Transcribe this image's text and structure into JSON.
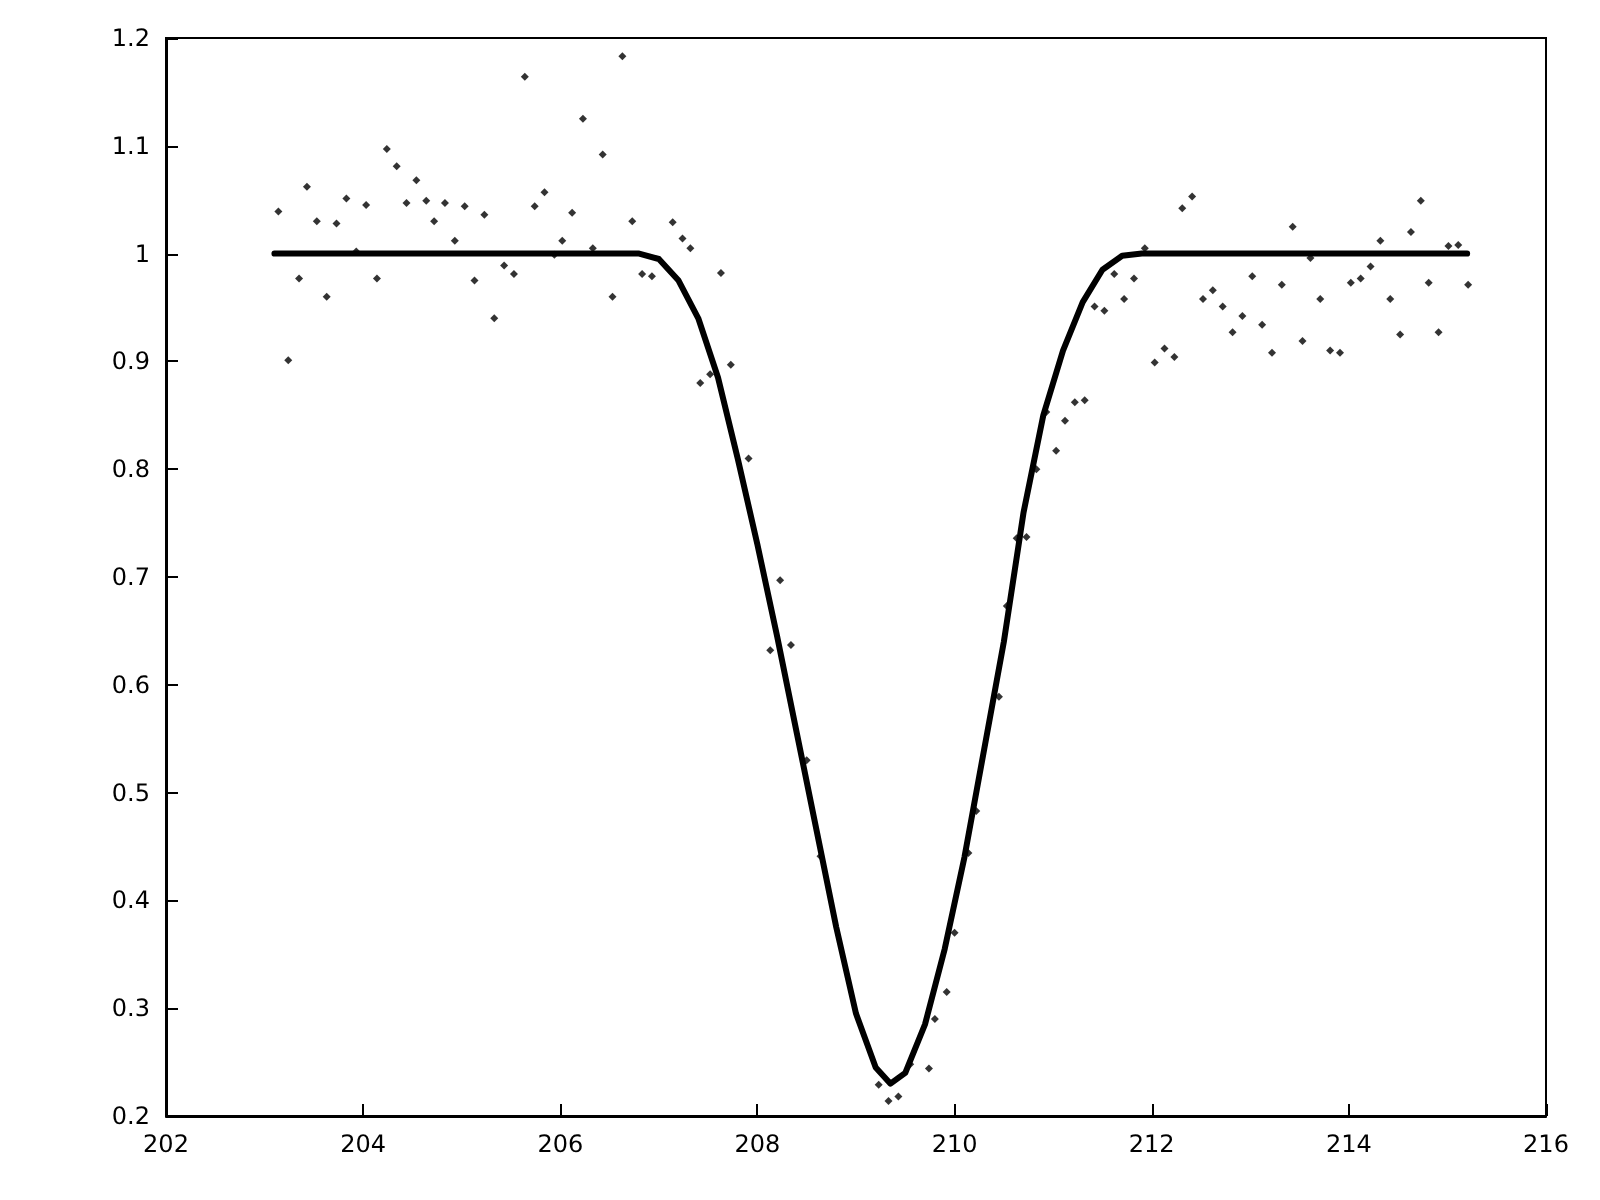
{
  "chart_data": {
    "type": "scatter",
    "xlim": [
      202,
      216
    ],
    "xticks": [
      202,
      204,
      206,
      208,
      210,
      212,
      214,
      216
    ],
    "ylim": [
      0.2,
      1.2
    ],
    "yticks": [
      0.2,
      0.3,
      0.4,
      0.5,
      0.6,
      0.7,
      0.8,
      0.9,
      1,
      1.1,
      1.2
    ],
    "grid": false,
    "series": [
      {
        "marker": "diamond",
        "color": "#000000",
        "x": [
          203.14,
          203.24,
          203.35,
          203.43,
          203.53,
          203.63,
          203.73,
          203.83,
          203.93,
          204.03,
          204.14,
          204.24,
          204.34,
          204.44,
          204.54,
          204.64,
          204.72,
          204.83,
          204.93,
          205.03,
          205.13,
          205.23,
          205.33,
          205.43,
          205.53,
          205.64,
          205.74,
          205.84,
          205.94,
          206.02,
          206.12,
          206.23,
          206.33,
          206.43,
          206.53,
          206.63,
          206.73,
          206.83,
          206.93,
          207.14,
          207.24,
          207.32,
          207.42,
          207.52,
          207.63,
          207.73,
          207.91,
          208.13,
          208.23,
          208.34,
          208.5,
          208.64,
          209.23,
          209.33,
          209.43,
          209.55,
          209.74,
          209.8,
          209.92,
          210.0,
          210.14,
          210.22,
          210.45,
          210.53,
          210.63,
          210.73,
          210.83,
          210.93,
          211.03,
          211.12,
          211.22,
          211.32,
          211.42,
          211.52,
          211.62,
          211.72,
          211.82,
          211.93,
          212.03,
          212.13,
          212.23,
          212.31,
          212.41,
          212.52,
          212.62,
          212.72,
          212.82,
          212.92,
          213.02,
          213.12,
          213.22,
          213.32,
          213.43,
          213.53,
          213.61,
          213.71,
          213.81,
          213.91,
          214.02,
          214.12,
          214.22,
          214.32,
          214.42,
          214.52,
          214.63,
          214.73,
          214.81,
          214.91,
          215.01,
          215.11,
          215.21
        ],
        "values": [
          1.039,
          0.901,
          0.977,
          1.062,
          1.03,
          0.96,
          1.028,
          1.051,
          1.002,
          1.045,
          0.977,
          1.097,
          1.081,
          1.047,
          1.068,
          1.049,
          1.03,
          1.047,
          1.012,
          1.044,
          0.975,
          1.036,
          0.94,
          0.989,
          0.981,
          1.164,
          1.044,
          1.057,
          0.999,
          1.012,
          1.038,
          1.125,
          1.005,
          1.092,
          0.96,
          1.183,
          1.03,
          0.981,
          0.979,
          1.029,
          1.014,
          1.005,
          0.88,
          0.888,
          0.982,
          0.897,
          0.81,
          0.632,
          0.697,
          0.637,
          0.53,
          0.441,
          0.229,
          0.214,
          0.218,
          0.248,
          0.244,
          0.29,
          0.315,
          0.37,
          0.444,
          0.483,
          0.589,
          0.673,
          0.736,
          0.737,
          0.8,
          0.853,
          0.817,
          0.845,
          0.862,
          0.864,
          0.951,
          0.947,
          0.981,
          0.958,
          0.977,
          1.005,
          0.899,
          0.912,
          0.904,
          1.042,
          1.053,
          0.958,
          0.966,
          0.951,
          0.927,
          0.942,
          0.979,
          0.934,
          0.908,
          0.971,
          1.025,
          0.919,
          0.996,
          0.958,
          0.91,
          0.908,
          0.973,
          0.977,
          0.988,
          1.012,
          0.958,
          0.925,
          1.02,
          1.049,
          0.973,
          0.927,
          1.007,
          1.008,
          0.971
        ]
      },
      {
        "type": "line",
        "marker": "none",
        "line_style": "solid",
        "color": "#000000",
        "x": [
          203.1,
          206.8,
          207.0,
          207.2,
          207.4,
          207.6,
          207.8,
          208.0,
          208.2,
          208.4,
          208.6,
          208.8,
          209.0,
          209.2,
          209.35,
          209.5,
          209.7,
          209.9,
          210.1,
          210.3,
          210.5,
          210.7,
          210.9,
          211.1,
          211.3,
          211.5,
          211.7,
          211.9,
          215.2
        ],
        "values": [
          1,
          1,
          0.995,
          0.975,
          0.94,
          0.885,
          0.81,
          0.73,
          0.645,
          0.555,
          0.465,
          0.375,
          0.295,
          0.245,
          0.23,
          0.24,
          0.285,
          0.355,
          0.44,
          0.54,
          0.64,
          0.76,
          0.85,
          0.91,
          0.955,
          0.985,
          0.998,
          1,
          1
        ]
      }
    ]
  }
}
